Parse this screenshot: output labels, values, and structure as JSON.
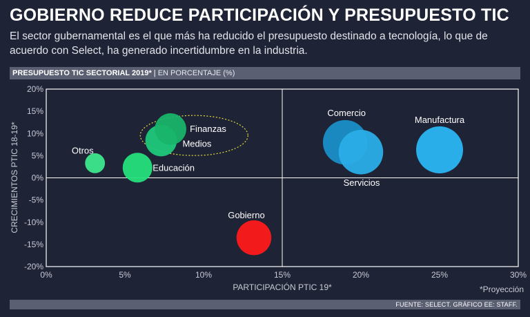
{
  "title": "GOBIERNO REDUCE PARTICIPACIÓN Y PRESUPUESTO TIC",
  "subtitle": "El sector gubernamental es el que más ha reducido el presupuesto destinado a tecnología, lo que de acuerdo con Select, ha generado incertidumbre en la industria.",
  "bar": {
    "heading": "PRESUPUESTO TIC SECTORIAL 2019*",
    "separator": " | ",
    "unit": "EN PORCENTAJE (%)"
  },
  "note": "*Proyección",
  "footer": "FUENTE: SELECT. GRÁFICO EE: STAFF.",
  "chart_data": {
    "type": "scatter",
    "xlabel": "PARTICIPACIÓN PTIC 19*",
    "ylabel": "CRECIMIENTOS PTIC 18-19*",
    "xlim": [
      0,
      30
    ],
    "ylim": [
      -20,
      20
    ],
    "xticks": [
      "0%",
      "5%",
      "10%",
      "15%",
      "20%",
      "25%",
      "30%"
    ],
    "yticks": [
      "20%",
      "15%",
      "10%",
      "5%",
      "0%",
      "-5%",
      "-10%",
      "-15%",
      "-20%"
    ],
    "grid": false,
    "points": [
      {
        "name": "Otros",
        "x": 3.1,
        "y": 3.3,
        "size": 0.18,
        "color": "#3ee88e"
      },
      {
        "name": "Educación",
        "x": 5.8,
        "y": 2.3,
        "size": 0.4,
        "color": "#26e07c"
      },
      {
        "name": "Medios",
        "x": 7.3,
        "y": 8.4,
        "size": 0.45,
        "color": "#1ec97a"
      },
      {
        "name": "Finanzas",
        "x": 7.9,
        "y": 11.0,
        "size": 0.45,
        "color": "#18b46a"
      },
      {
        "name": "Comercio",
        "x": 19.0,
        "y": 8.0,
        "size": 0.9,
        "color": "#1a8fc8"
      },
      {
        "name": "Servicios",
        "x": 20.0,
        "y": 5.8,
        "size": 0.9,
        "color": "#2aaee8"
      },
      {
        "name": "Manufactura",
        "x": 25.0,
        "y": 6.3,
        "size": 1.0,
        "color": "#2bb6f4"
      },
      {
        "name": "Gobierno",
        "x": 13.2,
        "y": -13.5,
        "size": 0.55,
        "color": "#ff1a1a"
      }
    ],
    "highlight_group": [
      "Finanzas",
      "Medios"
    ]
  }
}
